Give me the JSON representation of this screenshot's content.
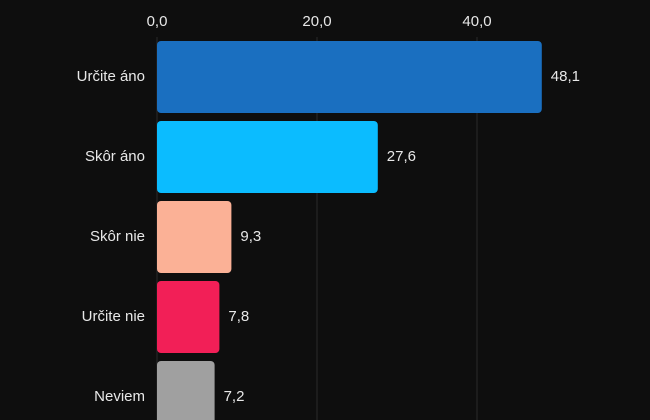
{
  "chart_data": {
    "type": "hbar",
    "categories": [
      "Určite áno",
      "Skôr áno",
      "Skôr nie",
      "Určite nie",
      "Neviem"
    ],
    "values": [
      48.1,
      27.6,
      9.3,
      7.8,
      7.2
    ],
    "value_labels": [
      "48,1",
      "27,6",
      "9,3",
      "7,8",
      "7,2"
    ],
    "colors": [
      "#1a6fc0",
      "#0bbcff",
      "#fbb196",
      "#f21f57",
      "#a0a0a0"
    ],
    "xlim": [
      0,
      60
    ],
    "xticks": [
      {
        "value": 0,
        "label": "0,0"
      },
      {
        "value": 20,
        "label": "20,0"
      },
      {
        "value": 40,
        "label": "40,0"
      }
    ],
    "grid": true
  }
}
